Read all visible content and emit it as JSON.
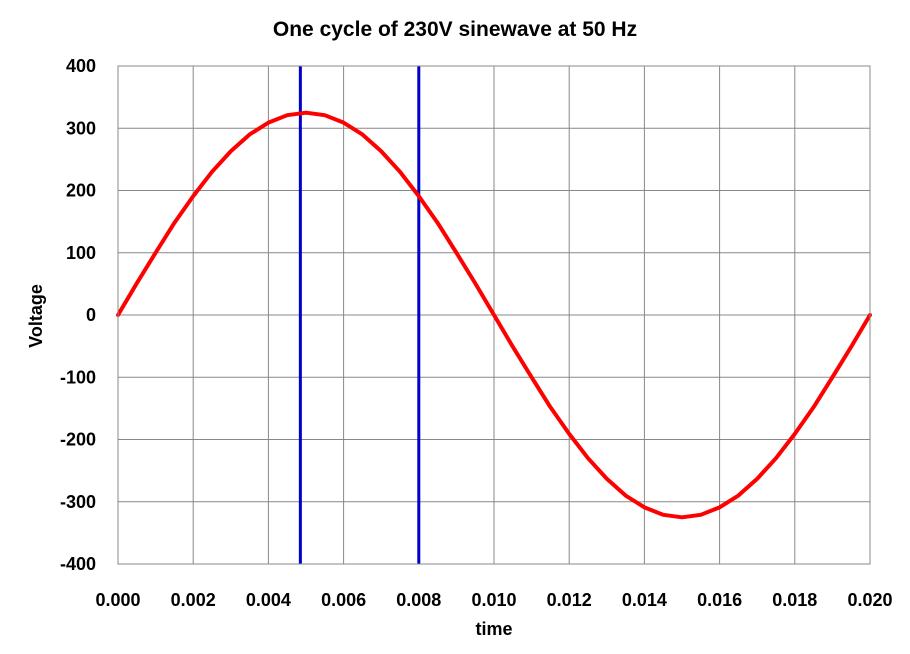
{
  "chart_data": {
    "type": "line",
    "title": "One cycle of 230V sinewave at 50 Hz",
    "xlabel": "time",
    "ylabel": "Voltage",
    "xlim": [
      0.0,
      0.02
    ],
    "ylim": [
      -400,
      400
    ],
    "grid": true,
    "x_ticks": [
      "0.000",
      "0.002",
      "0.004",
      "0.006",
      "0.008",
      "0.010",
      "0.012",
      "0.014",
      "0.016",
      "0.018",
      "0.020"
    ],
    "y_ticks": [
      "400",
      "300",
      "200",
      "100",
      "0",
      "-100",
      "-200",
      "-300",
      "-400"
    ],
    "series": [
      {
        "color": "#ff0000",
        "x": [
          0.0,
          0.0005,
          0.001,
          0.0015,
          0.002,
          0.0025,
          0.003,
          0.0035,
          0.004,
          0.0045,
          0.005,
          0.0055,
          0.006,
          0.0065,
          0.007,
          0.0075,
          0.008,
          0.0085,
          0.009,
          0.0095,
          0.01,
          0.0105,
          0.011,
          0.0115,
          0.012,
          0.0125,
          0.013,
          0.0135,
          0.014,
          0.0145,
          0.015,
          0.0155,
          0.016,
          0.0165,
          0.017,
          0.0175,
          0.018,
          0.0185,
          0.019,
          0.0195,
          0.02
        ],
        "values": [
          0,
          51,
          100,
          148,
          191,
          230,
          263,
          290,
          309,
          321,
          325,
          321,
          309,
          290,
          263,
          230,
          191,
          148,
          100,
          51,
          0,
          -51,
          -100,
          -148,
          -191,
          -230,
          -263,
          -290,
          -309,
          -321,
          -325,
          -321,
          -309,
          -290,
          -263,
          -230,
          -191,
          -148,
          -100,
          -51,
          0
        ]
      }
    ],
    "vertical_lines": [
      {
        "x": 0.00485,
        "color": "#0000cc"
      },
      {
        "x": 0.008,
        "color": "#0000cc"
      }
    ],
    "grid_color": "#888888"
  }
}
